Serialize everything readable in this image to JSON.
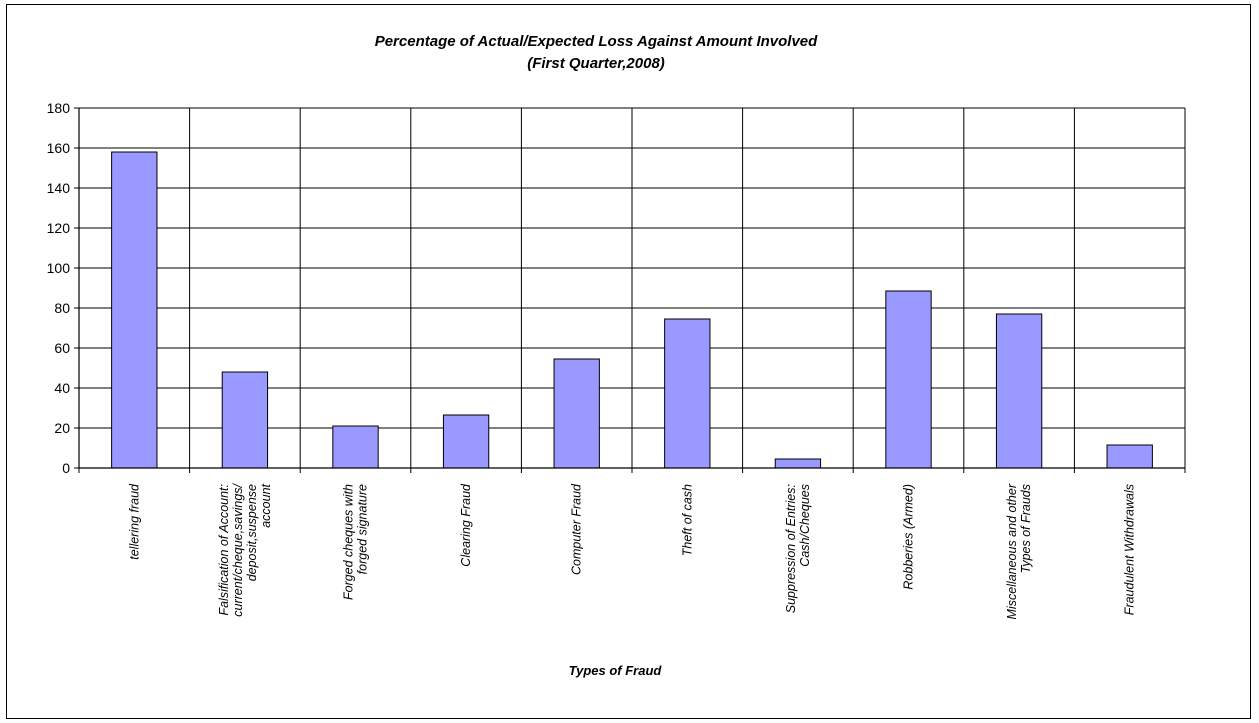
{
  "chart_data": {
    "type": "bar",
    "title": "Percentage of Actual/Expected Loss Against Amount Involved",
    "subtitle": "(First Quarter,2008)",
    "xlabel": "Types of Fraud",
    "ylabel": "",
    "ylim": [
      0,
      180
    ],
    "yticks": [
      0,
      20,
      40,
      60,
      80,
      100,
      120,
      140,
      160,
      180
    ],
    "grid": "horizontal and vertical",
    "legend": "none",
    "bar_color": "#9999ff",
    "categories": [
      [
        "tellering fraud"
      ],
      [
        "Falsification of Account:",
        "current/cheque,savings/",
        "deposit,suspense",
        "account"
      ],
      [
        "Forged cheques with",
        "forged signature"
      ],
      [
        "Clearing Fraud"
      ],
      [
        "Computer Fraud"
      ],
      [
        "Theft of cash"
      ],
      [
        "Suppression of Entries:",
        "Cash/Cheques"
      ],
      [
        "Robberies (Armed)"
      ],
      [
        "Miscellaneous and other",
        "Types of Frauds"
      ],
      [
        "Fraudulent Withdrawals"
      ]
    ],
    "values": [
      158,
      48,
      21,
      26.5,
      54.5,
      74.5,
      4.5,
      88.5,
      77,
      11.5
    ]
  }
}
